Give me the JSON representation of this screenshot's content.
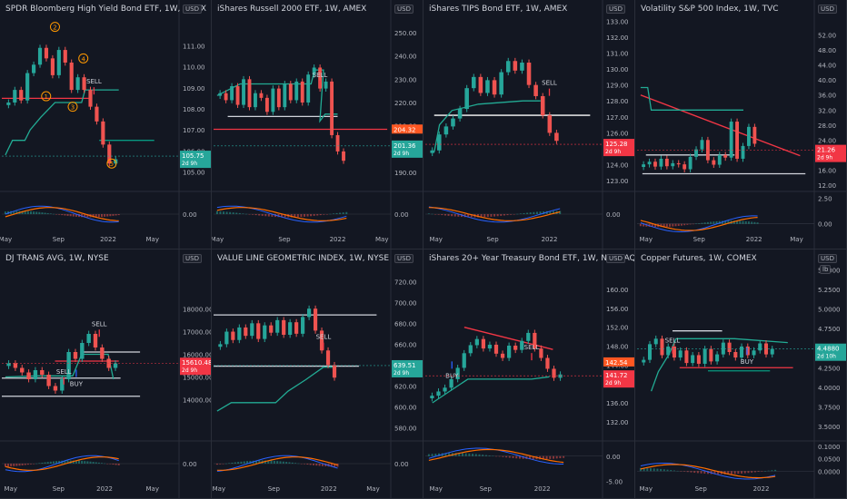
{
  "chart_data": [
    {
      "type": "candlestick",
      "title": "SPDR Bloomberg High Yield Bond ETF, 1W, AMEX",
      "unit": "USD",
      "ylim": [
        104.2,
        112.4
      ],
      "y_ticks": [
        "111.00",
        "110.00",
        "109.00",
        "108.00",
        "107.00",
        "106.00",
        "105.00"
      ],
      "osc_ylim": [
        -1,
        1
      ],
      "osc_ticks": [
        "0.00"
      ],
      "x_ticks": [
        {
          "t": 0.02,
          "label": "May"
        },
        {
          "t": 0.32,
          "label": "Sep"
        },
        {
          "t": 0.6,
          "label": "2022"
        },
        {
          "t": 0.85,
          "label": "May"
        }
      ],
      "price": [
        108.3,
        108.9,
        108.4,
        109.7,
        110.1,
        110.9,
        110.4,
        109.6,
        110.8,
        110.2,
        108.9,
        109.5,
        108.9,
        108.1,
        107.4,
        106.3,
        105.4,
        105.6
      ],
      "x_end": 0.66,
      "stop_line": [
        [
          0.02,
          105.8
        ],
        [
          0.06,
          106.5
        ],
        [
          0.13,
          106.5
        ],
        [
          0.16,
          107.0
        ],
        [
          0.22,
          107.6
        ],
        [
          0.3,
          108.3
        ],
        [
          0.45,
          108.3
        ],
        [
          0.47,
          108.9
        ],
        [
          0.66,
          108.9
        ]
      ],
      "hlines": [
        {
          "y": 108.5,
          "color": "#f23645",
          "x0": 0,
          "x1": 0.5
        },
        {
          "y": 106.5,
          "color": "#089981",
          "x0": 0.55,
          "x1": 0.86
        }
      ],
      "labels": [
        {
          "t": 0.3,
          "y": 111.9,
          "text": "2"
        },
        {
          "t": 0.46,
          "y": 110.4,
          "text": "4"
        },
        {
          "t": 0.25,
          "y": 108.6,
          "text": "1"
        },
        {
          "t": 0.4,
          "y": 108.1,
          "text": "3"
        },
        {
          "t": 0.62,
          "y": 105.4,
          "text": "5"
        }
      ],
      "signals": [
        {
          "t": 0.52,
          "y": 109.2,
          "text": "SELL",
          "dir": "down"
        }
      ],
      "last_price": {
        "value": "105.75",
        "timer": "2d 9h",
        "color": "#26a69a"
      }
    },
    {
      "type": "candlestick",
      "title": "iShares Russell 2000 ETF, 1W, AMEX",
      "unit": "USD",
      "ylim": [
        183,
        257
      ],
      "y_ticks": [
        "250.00",
        "240.00",
        "230.00",
        "220.00",
        "210.00",
        "200.00",
        "190.00"
      ],
      "osc_ylim": [
        -1,
        1
      ],
      "osc_ticks": [
        "0.00"
      ],
      "x_ticks": [
        {
          "t": 0.02,
          "label": "May"
        },
        {
          "t": 0.4,
          "label": "Sep"
        },
        {
          "t": 0.7,
          "label": "2022"
        },
        {
          "t": 0.95,
          "label": "May"
        }
      ],
      "price": [
        224,
        221,
        227,
        219,
        230,
        218,
        224,
        222,
        216,
        226,
        218,
        228,
        221,
        229,
        220,
        232,
        235,
        226,
        229,
        206,
        199,
        195
      ],
      "x_end": 0.75,
      "stop_line": [
        [
          0.02,
          223
        ],
        [
          0.15,
          228
        ],
        [
          0.55,
          228
        ],
        [
          0.57,
          234
        ],
        [
          0.62,
          234
        ],
        [
          0.6,
          212
        ],
        [
          0.63,
          215
        ],
        [
          0.7,
          215
        ]
      ],
      "hlines": [
        {
          "y": 208.5,
          "color": "#f23645",
          "x0": 0,
          "x1": 0.98
        },
        {
          "y": 214,
          "color": "#d1d4dc",
          "x0": 0.08,
          "x1": 0.7
        }
      ],
      "labels": [],
      "signals": [
        {
          "t": 0.6,
          "y": 231,
          "text": "SELL",
          "dir": "down"
        }
      ],
      "last_price": {
        "value": "201.36",
        "timer": "2d 9h",
        "color": "#26a69a"
      },
      "pre_price": {
        "value": "204.32",
        "color": "#ff5722"
      }
    },
    {
      "type": "candlestick",
      "title": "iShares TIPS Bond ETF, 1W, AMEX",
      "unit": "USD",
      "ylim": [
        122.5,
        133.3
      ],
      "y_ticks": [
        "133.00",
        "132.00",
        "131.00",
        "130.00",
        "129.00",
        "128.00",
        "127.00",
        "126.00",
        "125.00",
        "124.00",
        "123.00"
      ],
      "osc_ylim": [
        -1,
        1
      ],
      "osc_ticks": [
        "0.00"
      ],
      "x_ticks": [
        {
          "t": 0.06,
          "label": "May"
        },
        {
          "t": 0.38,
          "label": "Sep"
        },
        {
          "t": 0.7,
          "label": "2022"
        }
      ],
      "price": [
        124.9,
        125.9,
        126.4,
        126.9,
        127.5,
        128.8,
        129.5,
        128.5,
        129.3,
        128.4,
        129.8,
        130.5,
        129.9,
        130.4,
        129.0,
        128.3,
        127.1,
        126.0,
        125.5
      ],
      "x_end": 0.76,
      "stop_line": [
        [
          0.05,
          124.8
        ],
        [
          0.08,
          126.5
        ],
        [
          0.15,
          127.4
        ],
        [
          0.3,
          127.8
        ],
        [
          0.55,
          128.0
        ],
        [
          0.65,
          128.0
        ]
      ],
      "hlines": [
        {
          "y": 127.1,
          "color": "#ffffff",
          "x0": 0.05,
          "x1": 0.93
        }
      ],
      "labels": [],
      "signals": [
        {
          "t": 0.7,
          "y": 129.0,
          "text": "SELL",
          "dir": "down"
        }
      ],
      "last_price": {
        "value": "125.28",
        "timer": "2d 9h",
        "color": "#f23645"
      }
    },
    {
      "type": "candlestick",
      "title": "Volatility S&P 500 Index, 1W, TVC",
      "unit": "USD",
      "ylim": [
        11,
        57
      ],
      "y_ticks": [
        "52.00",
        "48.00",
        "44.00",
        "40.00",
        "36.00",
        "32.00",
        "28.00",
        "24.00",
        "20.00",
        "16.00",
        "12.00"
      ],
      "osc_ylim": [
        -1,
        2.9
      ],
      "osc_ticks": [
        "2.50",
        "0.00"
      ],
      "x_ticks": [
        {
          "t": 0.05,
          "label": "May"
        },
        {
          "t": 0.35,
          "label": "Sep"
        },
        {
          "t": 0.66,
          "label": "2022"
        },
        {
          "t": 0.9,
          "label": "May"
        }
      ],
      "price": [
        17.5,
        18.2,
        16.9,
        19.0,
        17.0,
        17.8,
        17.5,
        16.2,
        19.5,
        21.5,
        24.0,
        18.6,
        17.4,
        20.0,
        19.3,
        28.9,
        19.0,
        22.4,
        27.5,
        23.0
      ],
      "x_end": 0.68,
      "stop_line": [
        [
          0.02,
          38
        ],
        [
          0.06,
          38
        ],
        [
          0.08,
          32
        ],
        [
          0.55,
          32
        ],
        [
          0.6,
          32
        ]
      ],
      "hlines": [
        {
          "y": 15,
          "color": "#d1d4dc",
          "x0": 0.03,
          "x1": 0.95
        },
        {
          "y": 20,
          "color": "#d1d4dc",
          "x0": 0.05,
          "x1": 0.55
        }
      ],
      "trend": [
        [
          0.02,
          36
        ],
        [
          0.92,
          19.8
        ]
      ],
      "labels": [],
      "signals": [],
      "last_price": {
        "value": "21.26",
        "timer": "2d 9h",
        "color": "#f23645"
      }
    },
    {
      "type": "candlestick",
      "title": "DJ TRANS AVG, 1W, NYSE",
      "unit": "USD",
      "ylim": [
        12300,
        19900
      ],
      "y_ticks": [
        "18000.00",
        "17000.00",
        "16000.00",
        "15000.00",
        "14000.00"
      ],
      "osc_ylim": [
        -1,
        1
      ],
      "osc_ticks": [
        "0.00"
      ],
      "x_ticks": [
        {
          "t": 0.05,
          "label": "May"
        },
        {
          "t": 0.32,
          "label": "Sep"
        },
        {
          "t": 0.58,
          "label": "2022"
        },
        {
          "t": 0.85,
          "label": "May"
        }
      ],
      "price": [
        15600,
        15400,
        15200,
        14900,
        15300,
        15100,
        14600,
        14400,
        14900,
        16100,
        15800,
        16500,
        16900,
        16300,
        15800,
        15400,
        15600
      ],
      "x_end": 0.66,
      "stop_line": [
        [
          0.02,
          15000
        ],
        [
          0.2,
          15050
        ],
        [
          0.4,
          15050
        ],
        [
          0.45,
          16000
        ],
        [
          0.6,
          16000
        ],
        [
          0.63,
          14900
        ]
      ],
      "hlines": [
        {
          "y": 16100,
          "color": "#d1d4dc",
          "x0": 0.46,
          "x1": 0.78
        },
        {
          "y": 14950,
          "color": "#d1d4dc",
          "x0": 0,
          "x1": 0.67
        },
        {
          "y": 14150,
          "color": "#d1d4dc",
          "x0": 0,
          "x1": 0.78
        },
        {
          "y": 15700,
          "color": "#f23645",
          "x0": 0.3,
          "x1": 0.66
        }
      ],
      "labels": [],
      "signals": [
        {
          "t": 0.55,
          "y": 17250,
          "text": "SELL",
          "dir": "down"
        },
        {
          "t": 0.35,
          "y": 15150,
          "text": "SELL",
          "dir": "down"
        },
        {
          "t": 0.42,
          "y": 14600,
          "text": "BUY",
          "dir": "up"
        }
      ],
      "last_price": {
        "value": "15610.48",
        "timer": "2d 9h",
        "color": "#f23645"
      }
    },
    {
      "type": "candlestick",
      "title": "VALUE LINE GEOMETRIC INDEX, 1W, NYSE",
      "unit": "USD",
      "ylim": [
        570,
        735
      ],
      "y_ticks": [
        "720.00",
        "700.00",
        "680.00",
        "660.00",
        "640.00",
        "620.00",
        "600.00",
        "580.00"
      ],
      "osc_ylim": [
        -1,
        1
      ],
      "osc_ticks": [
        "0.00"
      ],
      "x_ticks": [
        {
          "t": 0.03,
          "label": "May"
        },
        {
          "t": 0.34,
          "label": "Sep"
        },
        {
          "t": 0.65,
          "label": "2022"
        },
        {
          "t": 0.9,
          "label": "May"
        }
      ],
      "price": [
        660,
        672,
        664,
        676,
        668,
        680,
        665,
        678,
        671,
        683,
        669,
        681,
        670,
        686,
        694,
        673,
        654,
        640,
        628
      ],
      "x_end": 0.7,
      "stop_line": [
        [
          0.02,
          596
        ],
        [
          0.1,
          604
        ],
        [
          0.35,
          604
        ],
        [
          0.42,
          615
        ],
        [
          0.52,
          626
        ],
        [
          0.62,
          638
        ],
        [
          0.68,
          638
        ]
      ],
      "hlines": [
        {
          "y": 688,
          "color": "#d1d4dc",
          "x0": 0,
          "x1": 0.92
        },
        {
          "y": 639,
          "color": "#d1d4dc",
          "x0": 0,
          "x1": 0.82
        }
      ],
      "labels": [],
      "signals": [
        {
          "t": 0.62,
          "y": 665,
          "text": "SELL",
          "dir": "down"
        }
      ],
      "last_price": {
        "value": "639.51",
        "timer": "2d 9h",
        "color": "#26a69a"
      }
    },
    {
      "type": "candlestick",
      "title": "iShares 20+ Year Treasury Bond ETF, 1W, NASDAQ",
      "unit": "USD",
      "ylim": [
        128.5,
        165
      ],
      "y_ticks": [
        "160.00",
        "156.00",
        "152.00",
        "148.00",
        "144.00",
        "140.00",
        "136.00",
        "132.00"
      ],
      "osc_ylim": [
        -5.5,
        2.5
      ],
      "osc_ticks": [
        "0.00",
        "-5.00"
      ],
      "x_ticks": [
        {
          "t": 0.06,
          "label": "May"
        },
        {
          "t": 0.34,
          "label": "Sep"
        },
        {
          "t": 0.66,
          "label": "2022"
        }
      ],
      "price": [
        137.5,
        138.4,
        139.2,
        141.0,
        143.4,
        146.5,
        148.2,
        149.5,
        147.5,
        148.3,
        146.4,
        145.5,
        148.1,
        147.2,
        149.1,
        150.8,
        147.5,
        145.5,
        143.2,
        141.3,
        142.0
      ],
      "x_end": 0.78,
      "stop_line": [
        [
          0.04,
          136
        ],
        [
          0.12,
          138
        ],
        [
          0.24,
          141
        ],
        [
          0.3,
          141
        ],
        [
          0.6,
          141
        ],
        [
          0.7,
          141.5
        ]
      ],
      "hlines": [],
      "trend": [
        [
          0.22,
          152
        ],
        [
          0.72,
          147.3
        ]
      ],
      "labels": [],
      "signals": [
        {
          "t": 0.6,
          "y": 147.3,
          "text": "SELL",
          "dir": "down"
        },
        {
          "t": 0.15,
          "y": 141.3,
          "text": "BUY",
          "dir": "up"
        }
      ],
      "last_price": {
        "value": "141.72",
        "timer": "2d 9h",
        "color": "#f23645"
      },
      "pre_price": {
        "value": "142.54",
        "color": "#ff5722"
      }
    },
    {
      "type": "candlestick",
      "title": "Copper Futures, 1W, COMEX",
      "unit": "USD",
      "unit2": "lb",
      "ylim": [
        3.35,
        5.55
      ],
      "y_ticks": [
        "5.5000",
        "5.2500",
        "5.0000",
        "4.7500",
        "4.5000",
        "4.2500",
        "4.0000",
        "3.7500",
        "3.5000"
      ],
      "osc_ylim": [
        -0.05,
        0.11
      ],
      "osc_ticks": [
        "0.1000",
        "0.0500",
        "0.0000"
      ],
      "x_ticks": [
        {
          "t": 0.05,
          "label": "May"
        },
        {
          "t": 0.36,
          "label": "Sep"
        },
        {
          "t": 0.7,
          "label": "2022"
        }
      ],
      "price": [
        4.35,
        4.55,
        4.62,
        4.41,
        4.52,
        4.38,
        4.47,
        4.31,
        4.41,
        4.3,
        4.49,
        4.33,
        4.42,
        4.57,
        4.45,
        4.38,
        4.52,
        4.41,
        4.47,
        4.56,
        4.42,
        4.49
      ],
      "x_end": 0.78,
      "stop_line": [
        [
          0.08,
          3.95
        ],
        [
          0.12,
          4.2
        ],
        [
          0.18,
          4.42
        ],
        [
          0.22,
          4.62
        ],
        [
          0.55,
          4.62
        ],
        [
          0.85,
          4.57
        ]
      ],
      "hlines": [
        {
          "y": 4.25,
          "color": "#f23645",
          "x0": 0.24,
          "x1": 0.88
        },
        {
          "y": 4.21,
          "color": "#089981",
          "x0": 0.4,
          "x1": 0.75
        },
        {
          "y": 4.72,
          "color": "#d1d4dc",
          "x0": 0.2,
          "x1": 0.48
        }
      ],
      "labels": [],
      "signals": [
        {
          "t": 0.2,
          "y": 4.57,
          "text": "SELL",
          "dir": "down"
        },
        {
          "t": 0.62,
          "y": 4.3,
          "text": "BUY",
          "dir": "up"
        }
      ],
      "last_price": {
        "value": "4.4880",
        "timer": "2d 10h",
        "color": "#26a69a"
      }
    }
  ]
}
